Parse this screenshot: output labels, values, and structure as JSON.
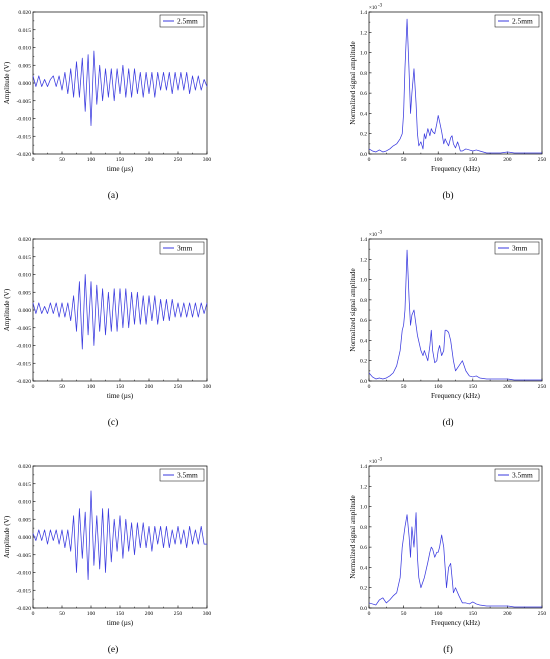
{
  "line_color": "#3a3adf",
  "chart_data": [
    {
      "panel_label": "(a)",
      "type": "line",
      "xlabel": "time (µs)",
      "ylabel": "Amplitude (V)",
      "xlim": [
        0,
        300
      ],
      "ylim": [
        -0.02,
        0.02
      ],
      "xticks": [
        "0",
        "50",
        "100",
        "150",
        "200",
        "250",
        "300"
      ],
      "yticks": [
        "-0.020",
        "-0.015",
        "-0.010",
        "-0.005",
        "0.000",
        "0.005",
        "0.010",
        "0.015",
        "0.020"
      ],
      "series": [
        {
          "name": "2.5mm",
          "x": [
            0,
            5,
            10,
            15,
            20,
            25,
            30,
            35,
            40,
            45,
            50,
            55,
            60,
            65,
            70,
            75,
            80,
            85,
            90,
            95,
            100,
            105,
            110,
            115,
            120,
            125,
            130,
            135,
            140,
            145,
            150,
            155,
            160,
            165,
            170,
            175,
            180,
            185,
            190,
            195,
            200,
            205,
            210,
            215,
            220,
            225,
            230,
            235,
            240,
            245,
            250,
            255,
            260,
            265,
            270,
            275,
            280,
            285,
            290,
            295,
            300
          ],
          "y": [
            0.002,
            -0.001,
            0.002,
            -0.001,
            0.001,
            -0.001,
            0.001,
            0.002,
            -0.001,
            0.002,
            -0.002,
            0.003,
            -0.003,
            0.004,
            -0.004,
            0.006,
            -0.004,
            0.007,
            -0.008,
            0.008,
            -0.012,
            0.009,
            -0.006,
            0.005,
            -0.005,
            0.004,
            -0.004,
            0.004,
            -0.005,
            0.004,
            -0.003,
            0.005,
            -0.004,
            0.004,
            -0.004,
            0.004,
            -0.003,
            0.003,
            -0.004,
            0.003,
            -0.003,
            0.003,
            -0.004,
            0.003,
            -0.002,
            0.003,
            -0.002,
            0.003,
            -0.003,
            0.003,
            -0.002,
            0.003,
            -0.002,
            0.003,
            -0.003,
            0.002,
            -0.002,
            0.002,
            -0.002,
            0.001,
            -0.001
          ]
        }
      ]
    },
    {
      "panel_label": "(b)",
      "type": "line",
      "xlabel": "Frequency (kHz)",
      "ylabel": "Normalized signal amplitude",
      "multiplier": "×10",
      "multiplier_exp": "-3",
      "xlim": [
        0,
        250
      ],
      "ylim": [
        0,
        1.4
      ],
      "xticks": [
        "0",
        "50",
        "100",
        "150",
        "200",
        "250"
      ],
      "yticks": [
        "0.0",
        "0.2",
        "0.4",
        "0.6",
        "0.8",
        "1.0",
        "1.2",
        "1.4"
      ],
      "series": [
        {
          "name": "2.5mm",
          "x": [
            0,
            5,
            10,
            15,
            20,
            25,
            30,
            35,
            40,
            45,
            48,
            50,
            52,
            55,
            58,
            60,
            62,
            65,
            68,
            70,
            72,
            75,
            78,
            80,
            82,
            85,
            88,
            90,
            92,
            95,
            98,
            100,
            102,
            105,
            108,
            110,
            112,
            115,
            118,
            120,
            122,
            125,
            128,
            130,
            132,
            135,
            140,
            145,
            150,
            155,
            160,
            170,
            180,
            190,
            200,
            210,
            220,
            230,
            240,
            250
          ],
          "y": [
            0.05,
            0.03,
            0.02,
            0.04,
            0.02,
            0.03,
            0.05,
            0.08,
            0.1,
            0.15,
            0.2,
            0.4,
            0.85,
            1.33,
            0.8,
            0.4,
            0.6,
            0.84,
            0.5,
            0.2,
            0.08,
            0.12,
            0.05,
            0.2,
            0.15,
            0.25,
            0.18,
            0.25,
            0.22,
            0.2,
            0.3,
            0.38,
            0.32,
            0.22,
            0.1,
            0.15,
            0.12,
            0.08,
            0.16,
            0.18,
            0.1,
            0.06,
            0.12,
            0.08,
            0.03,
            0.03,
            0.05,
            0.04,
            0.03,
            0.04,
            0.03,
            0.01,
            0.01,
            0.01,
            0.02,
            0.01,
            0.01,
            0.01,
            0.01,
            0.01
          ]
        }
      ]
    },
    {
      "panel_label": "(c)",
      "type": "line",
      "xlabel": "time (µs)",
      "ylabel": "Amplitude (V)",
      "xlim": [
        0,
        300
      ],
      "ylim": [
        -0.02,
        0.02
      ],
      "xticks": [
        "0",
        "50",
        "100",
        "150",
        "200",
        "250",
        "300"
      ],
      "yticks": [
        "-0.020",
        "-0.015",
        "-0.010",
        "-0.005",
        "0.000",
        "0.005",
        "0.010",
        "0.015",
        "0.020"
      ],
      "series": [
        {
          "name": "3mm",
          "x": [
            0,
            5,
            10,
            15,
            20,
            25,
            30,
            35,
            40,
            45,
            50,
            55,
            60,
            65,
            70,
            75,
            80,
            85,
            90,
            95,
            100,
            105,
            110,
            115,
            120,
            125,
            130,
            135,
            140,
            145,
            150,
            155,
            160,
            165,
            170,
            175,
            180,
            185,
            190,
            195,
            200,
            205,
            210,
            215,
            220,
            225,
            230,
            235,
            240,
            245,
            250,
            255,
            260,
            265,
            270,
            275,
            280,
            285,
            290,
            295,
            300
          ],
          "y": [
            0.002,
            -0.001,
            0.002,
            -0.001,
            0.001,
            -0.001,
            0.002,
            -0.001,
            0.002,
            -0.002,
            0.002,
            -0.002,
            0.002,
            -0.003,
            0.004,
            -0.006,
            0.008,
            -0.011,
            0.01,
            -0.007,
            0.008,
            -0.01,
            0.007,
            -0.006,
            0.006,
            -0.007,
            0.005,
            -0.006,
            0.006,
            -0.006,
            0.006,
            -0.005,
            0.006,
            -0.005,
            0.005,
            -0.004,
            0.005,
            -0.004,
            0.004,
            -0.004,
            0.004,
            -0.003,
            0.004,
            -0.004,
            0.003,
            -0.003,
            0.003,
            -0.003,
            0.003,
            -0.002,
            0.002,
            -0.002,
            0.002,
            -0.002,
            0.002,
            -0.002,
            0.002,
            -0.002,
            0.002,
            -0.001,
            0.002
          ]
        }
      ]
    },
    {
      "panel_label": "(d)",
      "type": "line",
      "xlabel": "Frequency (kHz)",
      "ylabel": "Normalized signal amplitude",
      "multiplier": "×10",
      "multiplier_exp": "-3",
      "xlim": [
        0,
        250
      ],
      "ylim": [
        0,
        1.4
      ],
      "xticks": [
        "0",
        "50",
        "100",
        "150",
        "200",
        "250"
      ],
      "yticks": [
        "0.0",
        "0.2",
        "0.4",
        "0.6",
        "0.8",
        "1.0",
        "1.2",
        "1.4"
      ],
      "series": [
        {
          "name": "3mm",
          "x": [
            0,
            5,
            10,
            15,
            20,
            25,
            30,
            35,
            40,
            45,
            48,
            50,
            52,
            55,
            58,
            60,
            62,
            65,
            68,
            70,
            75,
            78,
            80,
            85,
            88,
            90,
            92,
            95,
            98,
            100,
            102,
            105,
            108,
            110,
            112,
            115,
            118,
            120,
            122,
            125,
            130,
            135,
            140,
            145,
            150,
            155,
            160,
            170,
            180,
            190,
            200,
            210,
            220,
            230,
            240,
            250
          ],
          "y": [
            0.08,
            0.04,
            0.02,
            0.03,
            0.02,
            0.03,
            0.05,
            0.08,
            0.15,
            0.3,
            0.5,
            0.55,
            0.7,
            1.29,
            0.8,
            0.55,
            0.65,
            0.7,
            0.55,
            0.45,
            0.3,
            0.25,
            0.3,
            0.2,
            0.35,
            0.5,
            0.3,
            0.18,
            0.2,
            0.3,
            0.35,
            0.25,
            0.3,
            0.5,
            0.5,
            0.48,
            0.4,
            0.3,
            0.2,
            0.1,
            0.15,
            0.2,
            0.1,
            0.05,
            0.04,
            0.05,
            0.03,
            0.02,
            0.02,
            0.02,
            0.02,
            0.01,
            0.01,
            0.01,
            0.01,
            0.01
          ]
        }
      ]
    },
    {
      "panel_label": "(e)",
      "type": "line",
      "xlabel": "time (µs)",
      "ylabel": "Amplitude (V)",
      "xlim": [
        0,
        300
      ],
      "ylim": [
        -0.02,
        0.02
      ],
      "xticks": [
        "0",
        "50",
        "100",
        "150",
        "200",
        "250",
        "300"
      ],
      "yticks": [
        "-0.020",
        "-0.015",
        "-0.010",
        "-0.005",
        "0.000",
        "0.005",
        "0.010",
        "0.015",
        "0.020"
      ],
      "series": [
        {
          "name": "3.5mm",
          "x": [
            0,
            5,
            10,
            15,
            20,
            25,
            30,
            35,
            40,
            45,
            50,
            55,
            60,
            65,
            70,
            75,
            80,
            85,
            90,
            95,
            100,
            105,
            110,
            115,
            120,
            125,
            130,
            135,
            140,
            145,
            150,
            155,
            160,
            165,
            170,
            175,
            180,
            185,
            190,
            195,
            200,
            205,
            210,
            215,
            220,
            225,
            230,
            235,
            240,
            245,
            250,
            255,
            260,
            265,
            270,
            275,
            280,
            285,
            290,
            295,
            300
          ],
          "y": [
            0.001,
            -0.001,
            0.002,
            -0.001,
            0.002,
            -0.002,
            0.002,
            -0.001,
            0.002,
            -0.002,
            0.002,
            -0.003,
            0.002,
            -0.004,
            0.006,
            -0.01,
            0.008,
            -0.006,
            0.007,
            -0.012,
            0.013,
            -0.008,
            0.006,
            -0.009,
            0.008,
            -0.01,
            0.008,
            -0.007,
            0.005,
            -0.004,
            0.006,
            -0.006,
            0.005,
            -0.004,
            0.004,
            -0.005,
            0.004,
            -0.003,
            0.004,
            -0.003,
            0.003,
            -0.004,
            0.003,
            -0.002,
            0.003,
            -0.003,
            0.003,
            -0.003,
            0.002,
            -0.002,
            0.003,
            -0.002,
            0.002,
            -0.003,
            0.003,
            -0.002,
            0.002,
            -0.002,
            0.003,
            -0.002,
            -0.002
          ]
        }
      ]
    },
    {
      "panel_label": "(f)",
      "type": "line",
      "xlabel": "Frequency (kHz)",
      "ylabel": "Normalized signal amplitude",
      "multiplier": "×10",
      "multiplier_exp": "-3",
      "xlim": [
        0,
        250
      ],
      "ylim": [
        0,
        1.4
      ],
      "xticks": [
        "0",
        "50",
        "100",
        "150",
        "200",
        "250"
      ],
      "yticks": [
        "0.0",
        "0.2",
        "0.4",
        "0.6",
        "0.8",
        "1.0",
        "1.2",
        "1.4"
      ],
      "series": [
        {
          "name": "3.5mm",
          "x": [
            0,
            5,
            10,
            15,
            20,
            25,
            30,
            35,
            40,
            45,
            48,
            50,
            52,
            55,
            58,
            60,
            62,
            65,
            68,
            70,
            72,
            75,
            80,
            85,
            88,
            90,
            92,
            95,
            98,
            100,
            102,
            105,
            108,
            110,
            112,
            115,
            118,
            120,
            122,
            125,
            130,
            135,
            140,
            145,
            150,
            155,
            160,
            170,
            180,
            190,
            200,
            210,
            220,
            230,
            240,
            250
          ],
          "y": [
            0.05,
            0.04,
            0.03,
            0.08,
            0.1,
            0.05,
            0.08,
            0.12,
            0.15,
            0.3,
            0.6,
            0.7,
            0.8,
            0.92,
            0.7,
            0.5,
            0.8,
            0.6,
            0.94,
            0.5,
            0.3,
            0.2,
            0.3,
            0.45,
            0.55,
            0.6,
            0.58,
            0.5,
            0.55,
            0.55,
            0.6,
            0.72,
            0.6,
            0.4,
            0.2,
            0.4,
            0.44,
            0.3,
            0.15,
            0.2,
            0.12,
            0.05,
            0.05,
            0.04,
            0.06,
            0.04,
            0.03,
            0.02,
            0.02,
            0.02,
            0.02,
            0.01,
            0.01,
            0.01,
            0.01,
            0.01
          ]
        }
      ]
    }
  ]
}
